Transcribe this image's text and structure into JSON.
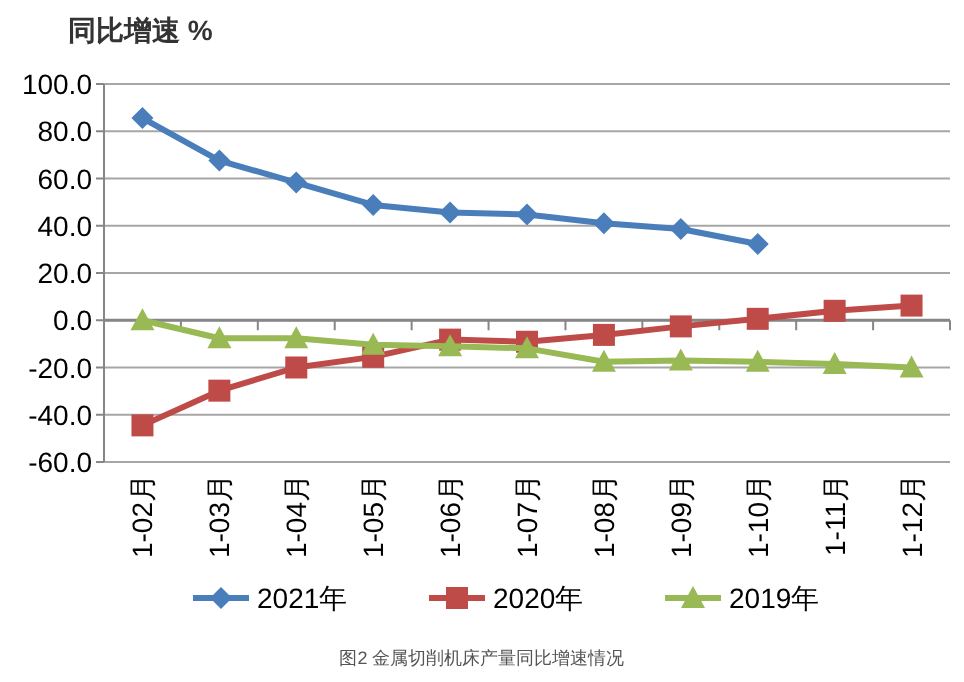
{
  "chart_data": {
    "type": "line",
    "ylabel": "同比增速 %",
    "categories": [
      "1-02月",
      "1-03月",
      "1-04月",
      "1-05月",
      "1-06月",
      "1-07月",
      "1-08月",
      "1-09月",
      "1-10月",
      "1-11月",
      "1-12月"
    ],
    "series": [
      {
        "name": "2021年",
        "color": "#4a7ebb",
        "marker": "diamond",
        "values": [
          85.6,
          67.6,
          58.3,
          48.8,
          45.6,
          44.8,
          41.1,
          38.6,
          32.3,
          null,
          null
        ]
      },
      {
        "name": "2020年",
        "color": "#be4b48",
        "marker": "square",
        "values": [
          -44.5,
          -29.8,
          -20.0,
          -15.5,
          -8.2,
          -9.1,
          -6.2,
          -2.6,
          0.6,
          4.0,
          6.2
        ]
      },
      {
        "name": "2019年",
        "color": "#98b954",
        "marker": "triangle",
        "values": [
          0.0,
          -7.6,
          -7.6,
          -10.4,
          -11.0,
          -11.9,
          -17.6,
          -17.0,
          -17.6,
          -18.5,
          -20.0
        ]
      }
    ],
    "ylim": [
      -60,
      100
    ],
    "yticks": [
      {
        "value": -60,
        "label": "-60.0"
      },
      {
        "value": -40,
        "label": "-40.0"
      },
      {
        "value": -20,
        "label": "-20.0"
      },
      {
        "value": 0,
        "label": "0.0"
      },
      {
        "value": 20,
        "label": "20.0"
      },
      {
        "value": 40,
        "label": "40.0"
      },
      {
        "value": 60,
        "label": "60.0"
      },
      {
        "value": 80,
        "label": "80.0"
      },
      {
        "value": 100,
        "label": "100.0"
      }
    ],
    "grid": "y",
    "legend": "bottom",
    "line_style": "solid",
    "annotations": [
      "图2 金属切削机床产量同比增速情况"
    ]
  }
}
